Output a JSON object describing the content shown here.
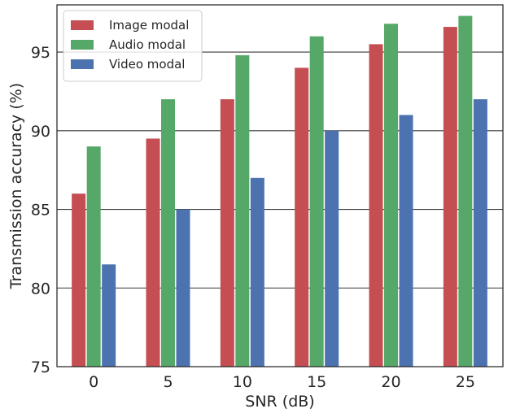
{
  "chart_data": {
    "type": "bar",
    "title": "",
    "xlabel": "SNR (dB)",
    "ylabel": "Transmission accuracy (%)",
    "categories": [
      "0",
      "5",
      "10",
      "15",
      "20",
      "25"
    ],
    "series": [
      {
        "name": "Image modal",
        "color": "#c44e52",
        "values": [
          86,
          89.5,
          92,
          94,
          95.5,
          96.6
        ]
      },
      {
        "name": "Audio modal",
        "color": "#55a868",
        "values": [
          89,
          92,
          94.8,
          96,
          96.8,
          97.3
        ]
      },
      {
        "name": "Video modal",
        "color": "#4c72b0",
        "values": [
          81.5,
          85,
          87,
          90,
          91,
          92
        ]
      }
    ],
    "ylim": [
      75,
      98
    ],
    "yticks": [
      75,
      80,
      85,
      90,
      95
    ],
    "grid": "horizontal",
    "legend_position": "top-left"
  }
}
